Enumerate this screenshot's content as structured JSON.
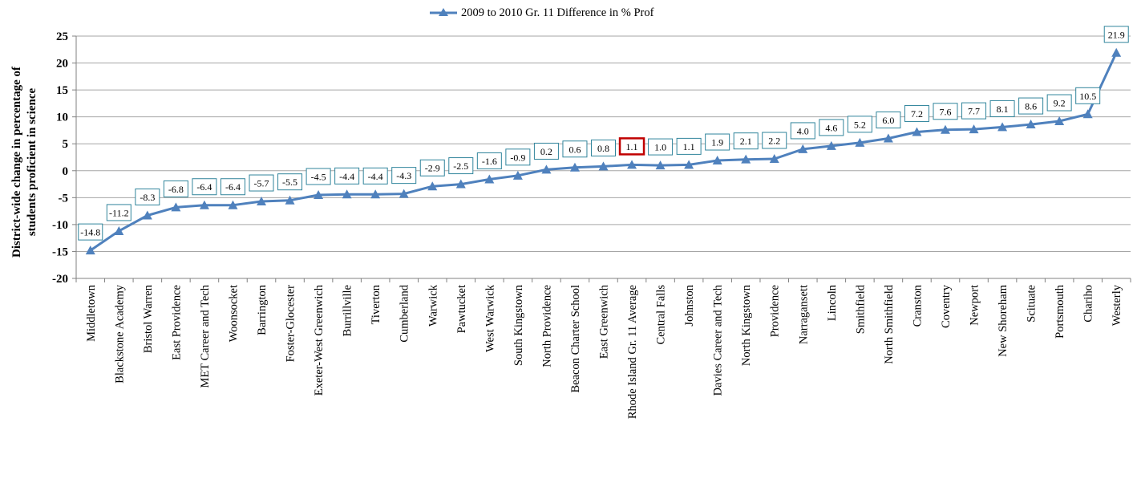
{
  "chart_data": {
    "type": "line",
    "title": "",
    "xlabel": "",
    "ylabel": "District-wide change in percentage of students proficient in science",
    "ylabel_lines": [
      "District-wide change in percentage of",
      "students proficient in science"
    ],
    "ylim": [
      -20,
      25
    ],
    "yticks": [
      25,
      20,
      15,
      10,
      5,
      0,
      -5,
      -10,
      -15,
      -20
    ],
    "grid": true,
    "legend": "top-center",
    "categories": [
      "Middletown",
      "Blackstone Academy",
      "Bristol Warren",
      "East Providence",
      "MET Career and Tech",
      "Woonsocket",
      "Barrington",
      "Foster-Glocester",
      "Exeter-West Greenwich",
      "Burrillville",
      "Tiverton",
      "Cumberland",
      "Warwick",
      "Pawtucket",
      "West Warwick",
      "South Kingstown",
      "North Providence",
      "Beacon Charter School",
      "East Greenwich",
      "Rhode Island Gr. 11 Average",
      "Central Falls",
      "Johnston",
      "Davies Career and Tech",
      "North Kingstown",
      "Providence",
      "Narragansett",
      "Lincoln",
      "Smithfield",
      "North Smithfield",
      "Cranston",
      "Coventry",
      "Newport",
      "New Shoreham",
      "Scituate",
      "Portsmouth",
      "Chariho",
      "Westerly"
    ],
    "series": [
      {
        "name": "2009 to 2010 Gr. 11 Difference in % Prof",
        "values": [
          -14.8,
          -11.2,
          -8.3,
          -6.8,
          -6.4,
          -6.4,
          -5.7,
          -5.5,
          -4.5,
          -4.4,
          -4.4,
          -4.3,
          -2.9,
          -2.5,
          -1.6,
          -0.9,
          0.2,
          0.6,
          0.8,
          1.1,
          1.0,
          1.1,
          1.9,
          2.1,
          2.2,
          4.0,
          4.6,
          5.2,
          6.0,
          7.2,
          7.6,
          7.7,
          8.1,
          8.6,
          9.2,
          10.5,
          21.9
        ],
        "labels": [
          "-14.8",
          "-11.2",
          "-8.3",
          "-6.8",
          "-6.4",
          "-6.4",
          "-5.7",
          "-5.5",
          "-4.5",
          "-4.4",
          "-4.4",
          "-4.3",
          "-2.9",
          "-2.5",
          "-1.6",
          "-0.9",
          "0.2",
          "0.6",
          "0.8",
          "1.1",
          "1.0",
          "1.1",
          "1.9",
          "2.1",
          "2.2",
          "4.0",
          "4.6",
          "5.2",
          "6.0",
          "7.2",
          "7.6",
          "7.7",
          "8.1",
          "8.6",
          "9.2",
          "10.5",
          "21.9"
        ]
      }
    ],
    "highlighted_category": "Rhode Island Gr. 11 Average",
    "colors": {
      "line": "#4F81BD",
      "label_border": "#31859C",
      "highlight_border": "#C00000",
      "grid": "#A6A6A6",
      "axis": "#808080"
    }
  }
}
